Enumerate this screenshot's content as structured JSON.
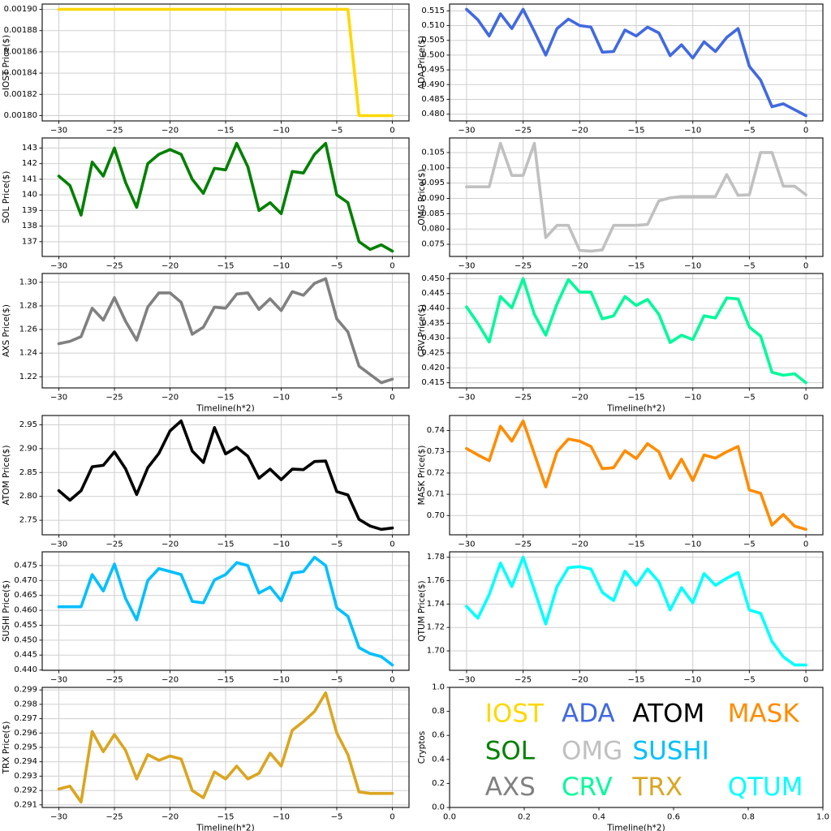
{
  "figure": {
    "background": "#ffffff",
    "xlabel": "Timeline(h*2)",
    "shared_x": [
      -30,
      -29,
      -28,
      -27,
      -26,
      -25,
      -24,
      -23,
      -22,
      -21,
      -20,
      -19,
      -18,
      -17,
      -16,
      -15,
      -14,
      -13,
      -12,
      -11,
      -10,
      -9,
      -8,
      -7,
      -6,
      -5,
      -4,
      -3,
      -2,
      -1,
      0
    ],
    "x_ticks": [
      -30,
      -25,
      -20,
      -15,
      -10,
      -5,
      0
    ],
    "xlim": [
      -31.5,
      1.5
    ]
  },
  "chart_data": [
    {
      "type": "line",
      "coin": "IOST",
      "ylabel": "IOST Price($)",
      "color": "#FFD700",
      "values": [
        0.0019,
        0.0019,
        0.0019,
        0.0019,
        0.0019,
        0.0019,
        0.0019,
        0.0019,
        0.0019,
        0.0019,
        0.0019,
        0.0019,
        0.0019,
        0.0019,
        0.0019,
        0.0019,
        0.0019,
        0.0019,
        0.0019,
        0.0019,
        0.0019,
        0.0019,
        0.0019,
        0.0019,
        0.0019,
        0.0019,
        0.0019,
        0.0018,
        0.0018,
        0.0018,
        0.0018
      ],
      "y_ticks": [
        0.0018,
        0.00182,
        0.00184,
        0.00186,
        0.00188,
        0.0019
      ],
      "y_decimals": 5,
      "show_xlabel": false
    },
    {
      "type": "line",
      "coin": "ADA",
      "ylabel": "ADA  Price($)",
      "color": "#4169E1",
      "values": [
        0.5155,
        0.512,
        0.5065,
        0.514,
        0.509,
        0.5155,
        0.508,
        0.5,
        0.509,
        0.5122,
        0.51,
        0.5095,
        0.501,
        0.5012,
        0.5085,
        0.5065,
        0.5095,
        0.5075,
        0.4998,
        0.5035,
        0.499,
        0.5045,
        0.5012,
        0.506,
        0.509,
        0.4962,
        0.4915,
        0.4825,
        0.4835,
        0.4815,
        0.4795
      ],
      "y_ticks": [
        0.48,
        0.485,
        0.49,
        0.495,
        0.5,
        0.505,
        0.51,
        0.515
      ],
      "y_decimals": 3,
      "show_xlabel": false
    },
    {
      "type": "line",
      "coin": "SOL",
      "ylabel": "SOL Price($)",
      "color": "#008000",
      "values": [
        141.2,
        140.6,
        138.7,
        142.1,
        141.2,
        143.0,
        140.8,
        139.2,
        142.0,
        142.6,
        142.9,
        142.6,
        141.0,
        140.1,
        141.7,
        141.6,
        143.3,
        141.8,
        139.0,
        139.5,
        138.8,
        141.5,
        141.4,
        142.6,
        143.3,
        140.0,
        139.5,
        137.0,
        136.5,
        136.8,
        136.4
      ],
      "y_ticks": [
        137,
        138,
        139,
        140,
        141,
        142,
        143
      ],
      "y_decimals": 0,
      "show_xlabel": false
    },
    {
      "type": "line",
      "coin": "OMG",
      "ylabel": "OMG  Price($)",
      "color": "#C0C0C0",
      "values": [
        0.0938,
        0.0938,
        0.0938,
        0.108,
        0.0975,
        0.0975,
        0.108,
        0.0772,
        0.0812,
        0.0812,
        0.073,
        0.0728,
        0.0732,
        0.0812,
        0.0812,
        0.0812,
        0.0815,
        0.0892,
        0.0902,
        0.0906,
        0.0906,
        0.0906,
        0.0906,
        0.0978,
        0.091,
        0.0912,
        0.105,
        0.105,
        0.094,
        0.094,
        0.0912
      ],
      "y_ticks": [
        0.075,
        0.08,
        0.085,
        0.09,
        0.095,
        0.1,
        0.105
      ],
      "y_decimals": 3,
      "show_xlabel": false
    },
    {
      "type": "line",
      "coin": "AXS",
      "ylabel": "AXS Price($)",
      "color": "#808080",
      "values": [
        1.248,
        1.25,
        1.254,
        1.278,
        1.268,
        1.287,
        1.267,
        1.251,
        1.279,
        1.291,
        1.291,
        1.283,
        1.256,
        1.262,
        1.279,
        1.278,
        1.29,
        1.291,
        1.277,
        1.286,
        1.276,
        1.292,
        1.289,
        1.299,
        1.303,
        1.269,
        1.258,
        1.229,
        1.222,
        1.215,
        1.218
      ],
      "y_ticks": [
        1.22,
        1.24,
        1.26,
        1.28,
        1.3
      ],
      "y_decimals": 2,
      "show_xlabel": true
    },
    {
      "type": "line",
      "coin": "CRV",
      "ylabel": "CRV  Price($)",
      "color": "#00FA9A",
      "values": [
        0.4405,
        0.435,
        0.4287,
        0.444,
        0.4402,
        0.45,
        0.438,
        0.431,
        0.4415,
        0.4497,
        0.4455,
        0.4455,
        0.4365,
        0.4375,
        0.444,
        0.441,
        0.443,
        0.438,
        0.4285,
        0.431,
        0.4295,
        0.4375,
        0.4368,
        0.4435,
        0.4432,
        0.4337,
        0.4307,
        0.4185,
        0.4175,
        0.418,
        0.415
      ],
      "y_ticks": [
        0.415,
        0.42,
        0.425,
        0.43,
        0.435,
        0.44,
        0.445,
        0.45
      ],
      "y_decimals": 3,
      "show_xlabel": true
    },
    {
      "type": "line",
      "coin": "ATOM",
      "ylabel": "ATOM  Price($)",
      "color": "#000000",
      "values": [
        2.812,
        2.792,
        2.812,
        2.862,
        2.865,
        2.893,
        2.858,
        2.804,
        2.86,
        2.89,
        2.937,
        2.958,
        2.895,
        2.871,
        2.944,
        2.889,
        2.903,
        2.884,
        2.838,
        2.857,
        2.835,
        2.857,
        2.856,
        2.873,
        2.874,
        2.81,
        2.803,
        2.752,
        2.738,
        2.731,
        2.734
      ],
      "y_ticks": [
        2.75,
        2.8,
        2.85,
        2.9,
        2.95
      ],
      "y_decimals": 2,
      "show_xlabel": false
    },
    {
      "type": "line",
      "coin": "MASK",
      "ylabel": "MASK  Price($)",
      "color": "#FF8C00",
      "values": [
        0.7315,
        0.7285,
        0.7258,
        0.742,
        0.735,
        0.7445,
        0.729,
        0.7135,
        0.73,
        0.736,
        0.735,
        0.7325,
        0.722,
        0.7225,
        0.7305,
        0.7268,
        0.7338,
        0.73,
        0.7175,
        0.7265,
        0.7165,
        0.7285,
        0.727,
        0.73,
        0.7325,
        0.712,
        0.7105,
        0.6955,
        0.7005,
        0.695,
        0.6935
      ],
      "y_ticks": [
        0.7,
        0.71,
        0.72,
        0.73,
        0.74
      ],
      "y_decimals": 2,
      "show_xlabel": false
    },
    {
      "type": "line",
      "coin": "SUSHI",
      "ylabel": "SUSHI  Price($)",
      "color": "#00BFFF",
      "values": [
        0.4612,
        0.4612,
        0.4612,
        0.472,
        0.4665,
        0.4755,
        0.464,
        0.4568,
        0.47,
        0.474,
        0.473,
        0.472,
        0.463,
        0.4625,
        0.4702,
        0.472,
        0.476,
        0.475,
        0.4658,
        0.4678,
        0.4632,
        0.4725,
        0.473,
        0.4778,
        0.475,
        0.4608,
        0.458,
        0.4475,
        0.4455,
        0.4445,
        0.4417
      ],
      "y_ticks": [
        0.44,
        0.445,
        0.45,
        0.455,
        0.46,
        0.465,
        0.47,
        0.475
      ],
      "y_decimals": 3,
      "show_xlabel": false
    },
    {
      "type": "line",
      "coin": "QTUM",
      "ylabel": "QTUM Price($)",
      "color": "#00FFFF",
      "values": [
        1.738,
        1.728,
        1.748,
        1.775,
        1.755,
        1.78,
        1.752,
        1.723,
        1.755,
        1.771,
        1.772,
        1.77,
        1.75,
        1.743,
        1.768,
        1.756,
        1.77,
        1.759,
        1.735,
        1.754,
        1.741,
        1.766,
        1.756,
        1.762,
        1.767,
        1.735,
        1.732,
        1.708,
        1.695,
        1.688,
        1.688
      ],
      "y_ticks": [
        1.7,
        1.72,
        1.74,
        1.76,
        1.78
      ],
      "y_decimals": 2,
      "show_xlabel": false
    },
    {
      "type": "line",
      "coin": "TRX",
      "ylabel": "TRX Price($)",
      "color": "#DAA520",
      "values": [
        0.2921,
        0.2923,
        0.2912,
        0.2961,
        0.2947,
        0.2959,
        0.2948,
        0.2928,
        0.2945,
        0.2941,
        0.2944,
        0.2942,
        0.292,
        0.2915,
        0.2933,
        0.2928,
        0.2937,
        0.2928,
        0.2932,
        0.2946,
        0.2937,
        0.2962,
        0.2968,
        0.2975,
        0.2988,
        0.296,
        0.2945,
        0.2919,
        0.2918,
        0.2918,
        0.2918
      ],
      "y_ticks": [
        0.291,
        0.292,
        0.293,
        0.294,
        0.295,
        0.296,
        0.297,
        0.298,
        0.299
      ],
      "y_decimals": 3,
      "show_xlabel": true
    },
    {
      "type": "legend",
      "ylabel": "Cryptos",
      "xlabel": "Timeline(h*2)",
      "xlim": [
        0,
        1
      ],
      "ylim": [
        0,
        1
      ],
      "x_ticks": [
        0,
        0.2,
        0.4,
        0.6,
        0.8,
        1.0
      ],
      "x_decimals": 1,
      "y_ticks": [
        0,
        0.2,
        0.4,
        0.6,
        0.8,
        1.0
      ],
      "y_decimals": 1,
      "show_xlabel": true,
      "entries": [
        {
          "label": "IOST",
          "color": "#FFD700",
          "x": 0.095,
          "y": 0.78
        },
        {
          "label": "ADA",
          "color": "#4169E1",
          "x": 0.3,
          "y": 0.78
        },
        {
          "label": "ATOM",
          "color": "#000000",
          "x": 0.49,
          "y": 0.78
        },
        {
          "label": "MASK",
          "color": "#FF8C00",
          "x": 0.745,
          "y": 0.78
        },
        {
          "label": "SOL",
          "color": "#008000",
          "x": 0.095,
          "y": 0.47
        },
        {
          "label": "OMG",
          "color": "#C0C0C0",
          "x": 0.3,
          "y": 0.47
        },
        {
          "label": "SUSHI",
          "color": "#00BFFF",
          "x": 0.49,
          "y": 0.47
        },
        {
          "label": "AXS",
          "color": "#808080",
          "x": 0.095,
          "y": 0.17
        },
        {
          "label": "CRV",
          "color": "#00FA9A",
          "x": 0.3,
          "y": 0.17
        },
        {
          "label": "TRX",
          "color": "#DAA520",
          "x": 0.49,
          "y": 0.17
        },
        {
          "label": "QTUM",
          "color": "#00FFFF",
          "x": 0.745,
          "y": 0.17
        }
      ]
    }
  ]
}
